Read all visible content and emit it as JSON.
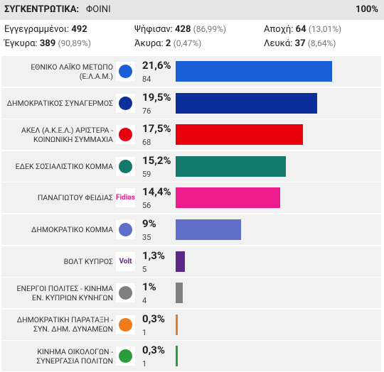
{
  "header": {
    "title": "ΣΥΓΚΕΝΤΡΩΤΙΚΑ:",
    "place": "ΦΟΙΝΙ",
    "progress": "100%"
  },
  "stats": [
    {
      "label": "Εγγεγραμμένοι:",
      "value": 492
    },
    {
      "label": "Ψήφισαν:",
      "value": 428,
      "pct": "(86,99%)"
    },
    {
      "label": "Αποχή:",
      "value": 64,
      "pct": "(13,01%)"
    },
    {
      "label": "Έγκυρα:",
      "value": 389,
      "pct": "(90,89%)"
    },
    {
      "label": "Άκυρα:",
      "value": 2,
      "pct": "(0,47%)"
    },
    {
      "label": "Λευκά:",
      "value": 37,
      "pct": "(8,64%)"
    }
  ],
  "chart_data": {
    "type": "bar",
    "orientation": "horizontal",
    "categories": [
      "ΕΘΝΙΚΟ ΛΑΪΚΟ ΜΕΤΩΠΟ (Ε.Λ.Α.Μ.)",
      "ΔΗΜΟΚΡΑΤΙΚΟΣ ΣΥΝΑΓΕΡΜΟΣ",
      "ΑΚΕΛ (Α.Κ.Ε.Λ.) ΑΡΙΣΤΕΡΑ - ΚΟΙΝΩΝΙΚΗ ΣΥΜΜΑΧΙΑ",
      "ΕΔΕΚ ΣΟΣΙΑΛΙΣΤΙΚΟ ΚΟΜΜΑ",
      "ΠΑΝΑΓΙΩΤΟΥ ΦΕΙΔΙΑΣ",
      "ΔΗΜΟΚΡΑΤΙΚΟ ΚΟΜΜΑ",
      "ΒΟΛΤ ΚΥΠΡΟΣ",
      "ΕΝΕΡΓΟΙ ΠΟΛΙΤΕΣ - ΚΙΝΗΜΑ ΕΝ. ΚΥΠΡΙΩΝ ΚΥΝΗΓΩΝ",
      "ΔΗΜΟΚΡΑΤΙΚΗ ΠΑΡΑΤΑΞΗ - ΣΥΝ. ΔΗΜ. ΔΥΝΑΜΕΩΝ",
      "ΚΙΝΗΜΑ ΟΙΚΟΛΟΓΩΝ - ΣΥΝΕΡΓΑΣΙΑ ΠΟΛΙΤΩΝ"
    ],
    "values": [
      21.6,
      19.5,
      17.5,
      15.2,
      14.4,
      9,
      1.3,
      1,
      0.3,
      0.3
    ],
    "value_labels": [
      "21,6%",
      "19,5%",
      "17,5%",
      "15,2%",
      "14,4%",
      "9%",
      "1,3%",
      "1%",
      "0,3%",
      "0,3%"
    ],
    "votes": [
      84,
      76,
      68,
      59,
      56,
      35,
      5,
      4,
      1,
      1
    ],
    "colors": [
      "#1a5fd8",
      "#0c2f9c",
      "#e8000d",
      "#137a6b",
      "#ee1b8d",
      "#5f6fca",
      "#5b2a86",
      "#808080",
      "#f07b1d",
      "#2a9d3b"
    ],
    "logo_labels": [
      null,
      null,
      null,
      null,
      "Fidias",
      null,
      "Volt",
      null,
      null,
      null
    ]
  }
}
